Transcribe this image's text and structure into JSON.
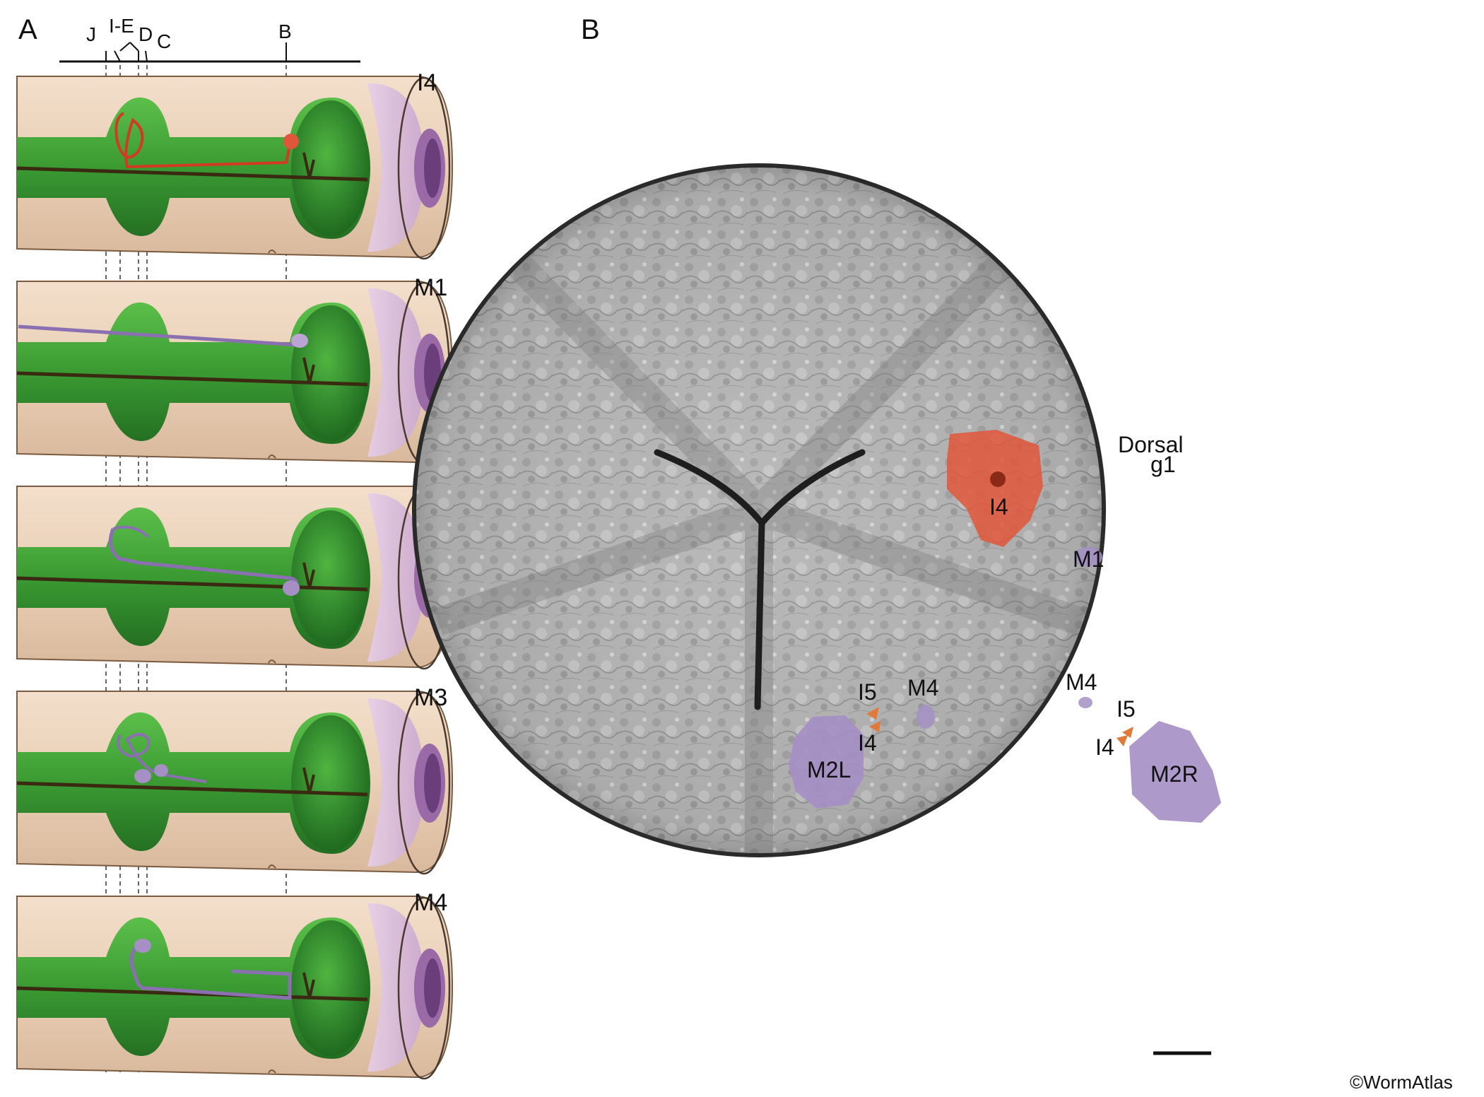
{
  "panels": {
    "a": {
      "letter": "A"
    },
    "b": {
      "letter": "B"
    }
  },
  "section_labels": [
    "J",
    "I-E",
    "D",
    "C",
    "B"
  ],
  "cells": [
    {
      "name": "I4",
      "color": "#e0462a"
    },
    {
      "name": "M1",
      "color": "#a58fc4"
    },
    {
      "name": "M2",
      "color": "#a58fc4"
    },
    {
      "name": "M3",
      "color": "#a58fc4"
    },
    {
      "name": "M4",
      "color": "#a58fc4"
    }
  ],
  "em_labels": {
    "dorsal": "Dorsal",
    "g1": "g1",
    "i4_top": "I4",
    "m1": "M1",
    "i5_left": "I5",
    "m4_left": "M4",
    "i4_left": "I4",
    "m2l": "M2L",
    "m4_right": "M4",
    "i5_right": "I5",
    "i4_right": "I4",
    "m2r": "M2R"
  },
  "copyright": "©WormAtlas",
  "colors": {
    "cuticle": "#ead0b6",
    "pharynx_green": "#3a9a32",
    "lumen": "#2e2a18",
    "mouth_purple": "#b48cc0",
    "i4_orange": "#e0563a",
    "m_purple": "#a58fc4"
  }
}
